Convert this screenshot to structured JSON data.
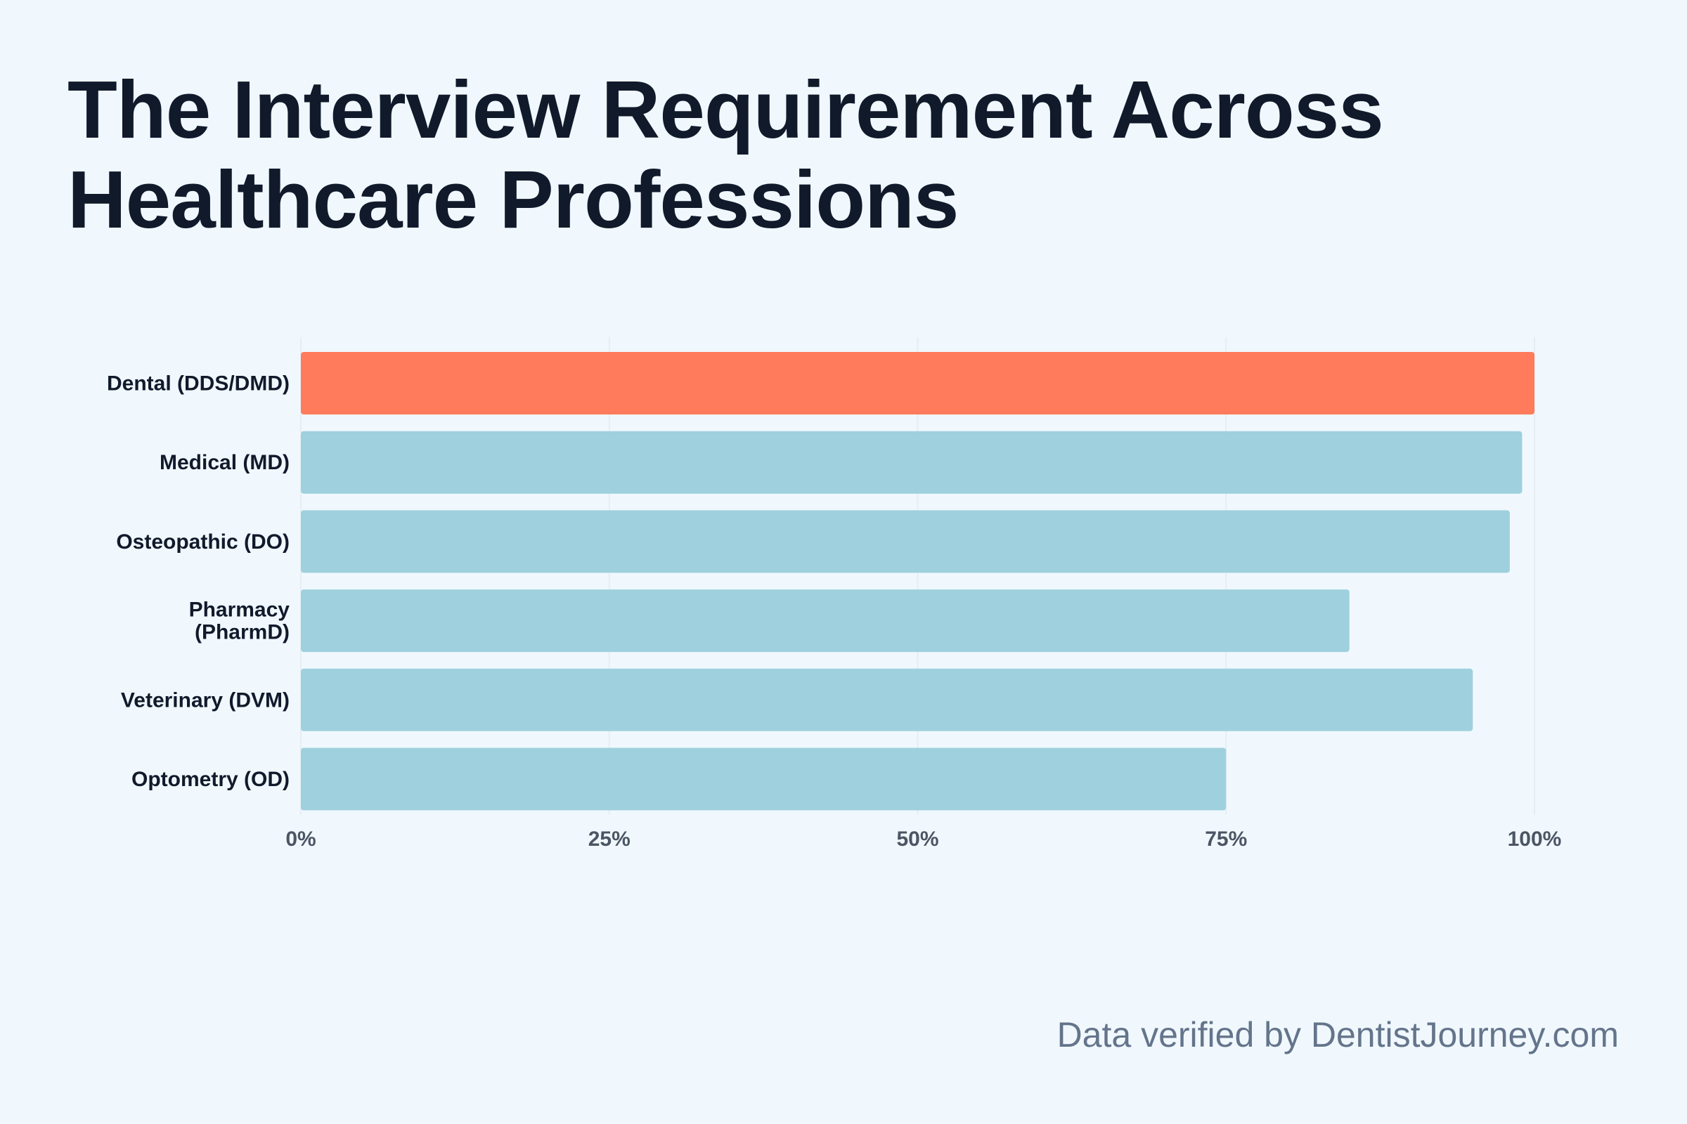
{
  "chart_data": {
    "type": "bar",
    "orientation": "horizontal",
    "title": "The Interview Requirement Across Healthcare Professions",
    "categories": [
      "Dental (DDS/DMD)",
      "Medical (MD)",
      "Osteopathic (DO)",
      "Pharmacy (PharmD)",
      "Veterinary (DVM)",
      "Optometry (OD)"
    ],
    "category_lines": [
      [
        "Dental (DDS/DMD)"
      ],
      [
        "Medical (MD)"
      ],
      [
        "Osteopathic (DO)"
      ],
      [
        "Pharmacy",
        "(PharmD)"
      ],
      [
        "Veterinary (DVM)"
      ],
      [
        "Optometry (OD)"
      ]
    ],
    "values": [
      100,
      99,
      98,
      85,
      95,
      75
    ],
    "highlight_index": 0,
    "xlim": [
      0,
      100
    ],
    "xticks": [
      0,
      25,
      50,
      75,
      100
    ],
    "xtick_labels": [
      "0%",
      "25%",
      "50%",
      "75%",
      "100%"
    ],
    "xlabel": "",
    "ylabel": "",
    "grid": "vertical",
    "legend": "none",
    "colors": {
      "highlight": "#ff7b5c",
      "default": "#9fd0dd",
      "grid": "#e6eef3",
      "background": "#f0f8fe"
    }
  },
  "footer": {
    "source": "Data verified by DentistJourney.com"
  }
}
